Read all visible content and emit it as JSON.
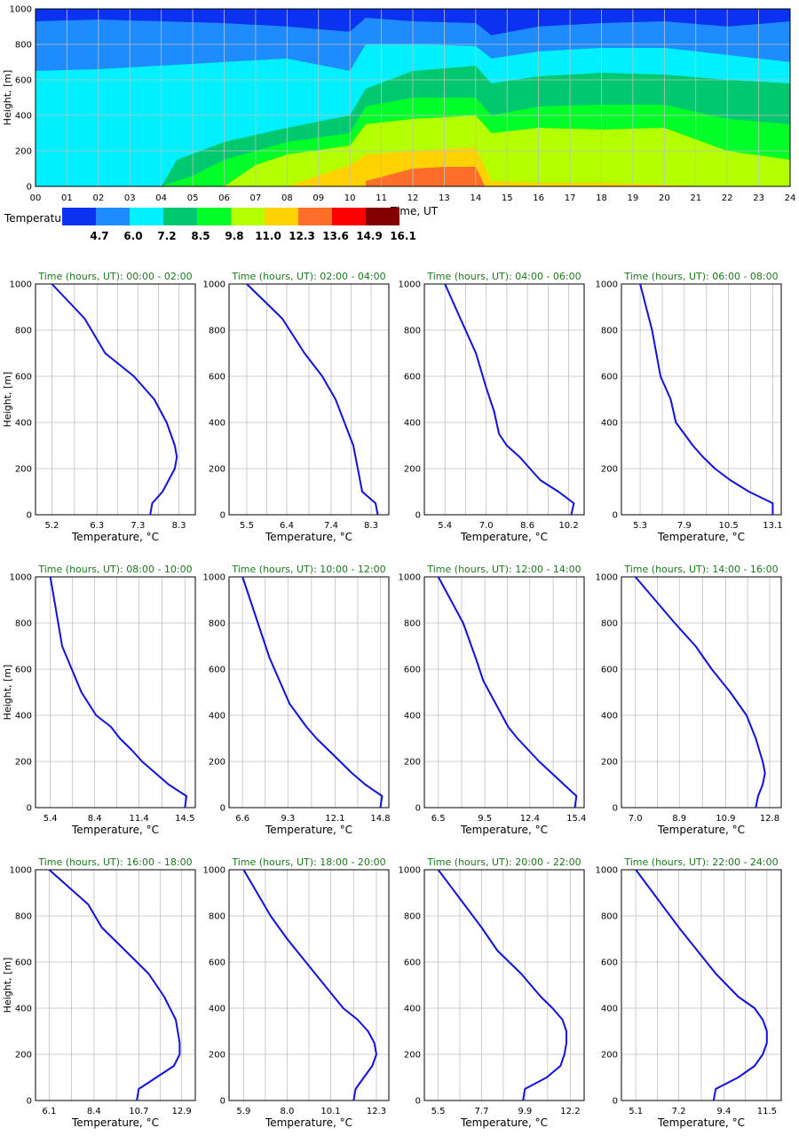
{
  "heatmap": {
    "ylabel": "Height, [m]",
    "xlabel": "Time, UT",
    "y_ticks": [
      "0",
      "200",
      "400",
      "600",
      "800",
      "1000"
    ],
    "x_ticks": [
      "00",
      "01",
      "02",
      "03",
      "04",
      "05",
      "06",
      "07",
      "08",
      "09",
      "10",
      "11",
      "12",
      "13",
      "14",
      "15",
      "16",
      "17",
      "18",
      "19",
      "20",
      "21",
      "22",
      "23",
      "24"
    ],
    "legend_title": "Temperature, °C",
    "legend_levels": [
      "4.7",
      "6.0",
      "7.2",
      "8.5",
      "9.8",
      "11.0",
      "12.3",
      "13.6",
      "14.9",
      "16.1"
    ],
    "legend_colors": [
      "#0a32f0",
      "#1e8cff",
      "#00f0ff",
      "#00c86e",
      "#00ff28",
      "#b4ff00",
      "#ffd200",
      "#ff6e28",
      "#ff0000",
      "#820000"
    ]
  },
  "chart_data": [
    {
      "type": "heatmap",
      "title": "",
      "xlabel": "Time, UT",
      "ylabel": "Height, [m]",
      "xlim": [
        0,
        24
      ],
      "ylim": [
        0,
        1000
      ],
      "grid": true,
      "color_levels": [
        4.7,
        6.0,
        7.2,
        8.5,
        9.8,
        11.0,
        12.3,
        13.6,
        14.9,
        16.1
      ],
      "isotherms": [
        {
          "level": 6.0,
          "x": [
            0,
            2,
            4,
            6,
            8,
            10,
            10.5,
            12,
            14,
            14.5,
            16,
            18,
            20,
            22,
            24
          ],
          "y": [
            930,
            940,
            930,
            920,
            900,
            870,
            950,
            930,
            920,
            850,
            900,
            920,
            930,
            900,
            930
          ]
        },
        {
          "level": 7.2,
          "x": [
            0,
            2,
            4,
            6,
            8,
            10,
            10.5,
            12,
            14,
            14.5,
            16,
            18,
            20,
            22,
            24
          ],
          "y": [
            650,
            660,
            680,
            700,
            720,
            650,
            800,
            800,
            790,
            720,
            760,
            780,
            780,
            740,
            700
          ]
        },
        {
          "level": 8.5,
          "x": [
            0,
            2,
            4,
            4.5,
            6,
            8,
            10,
            10.5,
            12,
            14,
            14.5,
            16,
            18,
            20,
            22,
            24
          ],
          "y": [
            0,
            0,
            0,
            150,
            250,
            330,
            400,
            550,
            650,
            680,
            580,
            620,
            640,
            630,
            600,
            580
          ]
        },
        {
          "level": 9.8,
          "x": [
            4,
            5,
            6,
            8,
            10,
            10.5,
            12,
            14,
            14.5,
            16,
            18,
            20,
            22,
            24
          ],
          "y": [
            0,
            60,
            150,
            250,
            300,
            450,
            500,
            500,
            400,
            450,
            460,
            460,
            380,
            350
          ]
        },
        {
          "level": 11.0,
          "x": [
            6,
            7,
            8,
            10,
            10.5,
            12,
            14,
            14.5,
            16,
            18,
            20,
            22,
            24
          ],
          "y": [
            0,
            120,
            180,
            230,
            350,
            380,
            400,
            300,
            330,
            320,
            330,
            200,
            150
          ]
        },
        {
          "level": 12.3,
          "x": [
            8,
            10,
            10.5,
            12,
            14,
            14.5,
            16,
            18,
            20,
            21
          ],
          "y": [
            0,
            120,
            180,
            200,
            220,
            30,
            20,
            20,
            10,
            0
          ]
        },
        {
          "level": 13.6,
          "x": [
            10.5,
            12,
            13,
            14,
            14.3
          ],
          "y": [
            30,
            100,
            110,
            110,
            0
          ]
        }
      ]
    },
    {
      "type": "line",
      "title": "Time (hours, UT): 00:00 - 02:00",
      "xlabel": "Temperature, °C",
      "ylabel": "Height, [m]",
      "xlim": [
        4.8,
        8.7
      ],
      "x_ticks": [
        5.2,
        6.3,
        7.3,
        8.3
      ],
      "ylim": [
        0,
        1000
      ],
      "x": [
        7.6,
        7.65,
        7.9,
        8.05,
        8.2,
        8.25,
        8.2,
        8.0,
        7.7,
        7.2,
        6.5,
        6.0,
        5.2
      ],
      "y": [
        0,
        50,
        100,
        150,
        200,
        250,
        300,
        400,
        500,
        600,
        700,
        850,
        1000
      ]
    },
    {
      "type": "line",
      "title": "Time (hours, UT): 02:00 - 04:00",
      "xlabel": "Temperature, °C",
      "ylabel": "Height, [m]",
      "xlim": [
        5.1,
        8.7
      ],
      "x_ticks": [
        5.5,
        6.4,
        7.4,
        8.3
      ],
      "ylim": [
        0,
        1000
      ],
      "x": [
        8.45,
        8.4,
        8.1,
        8.05,
        8.0,
        7.9,
        7.7,
        7.5,
        7.2,
        6.8,
        6.3,
        5.5
      ],
      "y": [
        0,
        50,
        100,
        150,
        200,
        300,
        400,
        500,
        600,
        700,
        850,
        1000
      ]
    },
    {
      "type": "line",
      "title": "Time (hours, UT): 04:00 - 06:00",
      "xlabel": "Temperature, °C",
      "ylabel": "Height, [m]",
      "xlim": [
        4.6,
        10.8
      ],
      "x_ticks": [
        5.4,
        7.0,
        8.6,
        10.2
      ],
      "ylim": [
        0,
        1000
      ],
      "x": [
        10.3,
        10.4,
        9.8,
        9.1,
        8.7,
        8.3,
        7.8,
        7.5,
        7.3,
        7.0,
        6.6,
        6.0,
        5.4
      ],
      "y": [
        0,
        50,
        100,
        150,
        200,
        250,
        300,
        350,
        450,
        550,
        700,
        850,
        1000
      ]
    },
    {
      "type": "line",
      "title": "Time (hours, UT): 06:00 - 08:00",
      "xlabel": "Temperature, °C",
      "ylabel": "Height, [m]",
      "xlim": [
        4.2,
        13.6
      ],
      "x_ticks": [
        5.3,
        7.9,
        10.5,
        13.1
      ],
      "ylim": [
        0,
        1000
      ],
      "x": [
        13.1,
        13.1,
        11.7,
        10.6,
        9.7,
        9.0,
        8.4,
        7.9,
        7.4,
        7.1,
        6.5,
        6.0,
        5.3
      ],
      "y": [
        0,
        50,
        100,
        150,
        200,
        250,
        300,
        350,
        400,
        500,
        600,
        800,
        1000
      ]
    },
    {
      "type": "line",
      "title": "Time (hours, UT): 08:00 - 10:00",
      "xlabel": "Temperature, °C",
      "ylabel": "Height, [m]",
      "xlim": [
        4.4,
        15.2
      ],
      "x_ticks": [
        5.4,
        8.4,
        11.4,
        14.5
      ],
      "ylim": [
        0,
        1000
      ],
      "x": [
        14.5,
        14.6,
        13.4,
        12.5,
        11.6,
        10.9,
        10.1,
        9.5,
        8.5,
        7.5,
        6.2,
        5.4
      ],
      "y": [
        0,
        50,
        100,
        150,
        200,
        250,
        300,
        350,
        400,
        500,
        700,
        1000
      ]
    },
    {
      "type": "line",
      "title": "Time (hours, UT): 10:00 - 12:00",
      "xlabel": "Temperature, °C",
      "ylabel": "Height, [m]",
      "xlim": [
        5.8,
        15.3
      ],
      "x_ticks": [
        6.6,
        9.3,
        12.1,
        14.8
      ],
      "ylim": [
        0,
        1000
      ],
      "x": [
        14.8,
        14.9,
        13.9,
        13.1,
        12.4,
        11.7,
        11.0,
        10.4,
        9.4,
        8.2,
        6.6
      ],
      "y": [
        0,
        50,
        100,
        150,
        200,
        250,
        300,
        350,
        450,
        650,
        1000
      ]
    },
    {
      "type": "line",
      "title": "Time (hours, UT): 12:00 - 14:00",
      "xlabel": "Temperature, °C",
      "ylabel": "Height, [m]",
      "xlim": [
        5.6,
        15.9
      ],
      "x_ticks": [
        6.5,
        9.5,
        12.4,
        15.4
      ],
      "ylim": [
        0,
        1000
      ],
      "x": [
        15.3,
        15.4,
        14.6,
        13.8,
        13.0,
        12.3,
        11.6,
        11.0,
        10.2,
        9.4,
        8.9,
        8.1,
        6.5
      ],
      "y": [
        0,
        50,
        100,
        150,
        200,
        250,
        300,
        350,
        450,
        550,
        650,
        800,
        1000
      ]
    },
    {
      "type": "line",
      "title": "Time (hours, UT): 14:00 - 16:00",
      "xlabel": "Temperature, °C",
      "ylabel": "Height, [m]",
      "xlim": [
        6.4,
        13.3
      ],
      "x_ticks": [
        7.0,
        8.9,
        10.9,
        12.8
      ],
      "ylim": [
        0,
        1000
      ],
      "x": [
        12.2,
        12.3,
        12.5,
        12.6,
        12.5,
        12.2,
        11.8,
        11.1,
        10.3,
        9.6,
        8.7,
        7.0
      ],
      "y": [
        0,
        50,
        100,
        150,
        200,
        300,
        400,
        500,
        600,
        700,
        800,
        1000
      ]
    },
    {
      "type": "line",
      "title": "Time (hours, UT): 16:00 - 18:00",
      "xlabel": "Temperature, °C",
      "ylabel": "Height, [m]",
      "xlim": [
        5.4,
        13.6
      ],
      "x_ticks": [
        6.1,
        8.4,
        10.7,
        12.9
      ],
      "ylim": [
        0,
        1000
      ],
      "x": [
        10.6,
        10.7,
        11.6,
        12.5,
        12.8,
        12.8,
        12.6,
        12.0,
        11.2,
        10.0,
        8.8,
        8.1,
        6.1
      ],
      "y": [
        0,
        50,
        100,
        150,
        200,
        250,
        350,
        450,
        550,
        650,
        750,
        850,
        1000
      ]
    },
    {
      "type": "line",
      "title": "Time (hours, UT): 18:00 - 20:00",
      "xlabel": "Temperature, °C",
      "ylabel": "Height, [m]",
      "xlim": [
        5.2,
        12.9
      ],
      "x_ticks": [
        5.9,
        8.0,
        10.1,
        12.3
      ],
      "ylim": [
        0,
        1000
      ],
      "x": [
        11.2,
        11.3,
        11.7,
        12.1,
        12.3,
        12.2,
        11.9,
        11.4,
        10.7,
        9.8,
        8.9,
        8.0,
        7.2,
        5.9
      ],
      "y": [
        0,
        50,
        100,
        150,
        200,
        250,
        300,
        350,
        400,
        500,
        600,
        700,
        800,
        1000
      ]
    },
    {
      "type": "line",
      "title": "Time (hours, UT): 20:00 - 22:00",
      "xlabel": "Temperature, °C",
      "ylabel": "Height, [m]",
      "xlim": [
        4.8,
        12.9
      ],
      "x_ticks": [
        5.5,
        7.7,
        9.9,
        12.2
      ],
      "ylim": [
        0,
        1000
      ],
      "x": [
        9.8,
        9.9,
        11.0,
        11.7,
        11.9,
        12.0,
        12.0,
        11.8,
        11.3,
        10.7,
        9.7,
        8.5,
        7.7,
        5.5
      ],
      "y": [
        0,
        50,
        100,
        150,
        200,
        250,
        300,
        350,
        400,
        450,
        550,
        650,
        750,
        1000
      ]
    },
    {
      "type": "line",
      "title": "Time (hours, UT): 22:00 - 24:00",
      "xlabel": "Temperature, °C",
      "ylabel": "Height, [m]",
      "xlim": [
        4.4,
        12.2
      ],
      "x_ticks": [
        5.1,
        7.2,
        9.4,
        11.5
      ],
      "ylim": [
        0,
        1000
      ],
      "x": [
        8.9,
        9.0,
        10.1,
        10.9,
        11.3,
        11.5,
        11.5,
        11.3,
        10.9,
        10.1,
        9.0,
        8.1,
        7.2,
        5.1
      ],
      "y": [
        0,
        50,
        100,
        150,
        200,
        250,
        300,
        350,
        400,
        450,
        550,
        650,
        750,
        1000
      ]
    }
  ]
}
